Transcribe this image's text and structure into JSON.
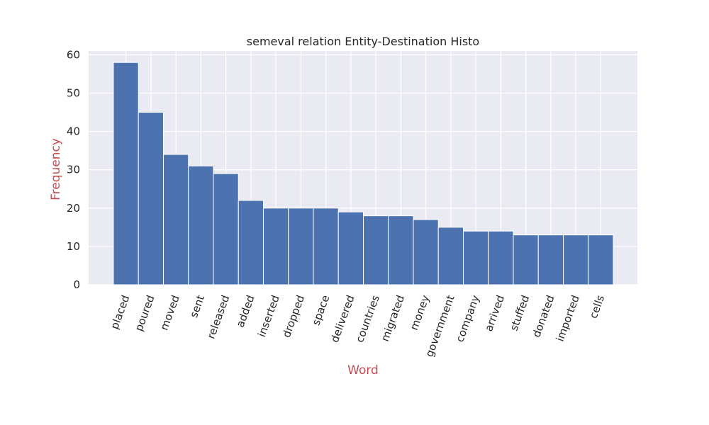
{
  "chart_data": {
    "type": "bar",
    "title": "semeval relation Entity-Destination Histo",
    "xlabel": "Word",
    "ylabel": "Frequency",
    "categories": [
      "placed",
      "poured",
      "moved",
      "sent",
      "released",
      "added",
      "inserted",
      "dropped",
      "space",
      "delivered",
      "countries",
      "migrated",
      "money",
      "government",
      "company",
      "arrived",
      "stuffed",
      "donated",
      "imported",
      "cells"
    ],
    "values": [
      58,
      45,
      34,
      31,
      29,
      22,
      20,
      20,
      20,
      19,
      18,
      18,
      17,
      15,
      14,
      14,
      13,
      13,
      13,
      13
    ],
    "ylim": [
      0,
      61
    ],
    "yticks": [
      0,
      10,
      20,
      30,
      40,
      50,
      60
    ],
    "grid": true,
    "colors": {
      "bar": "#4c72b0",
      "background": "#eaeaf2",
      "grid": "#ffffff",
      "axis_label": "#c44e52",
      "text": "#262626"
    }
  }
}
